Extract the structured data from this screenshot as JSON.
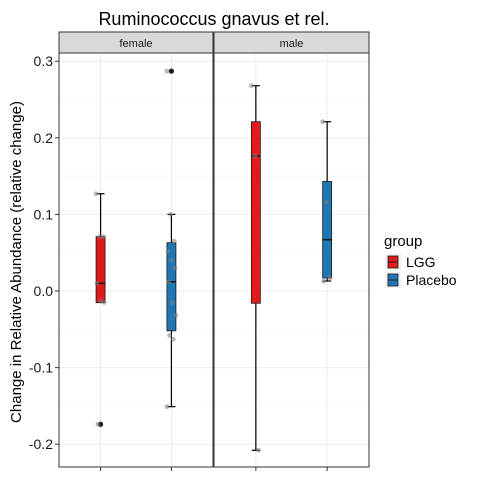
{
  "chart_data": {
    "type": "boxplot",
    "title": "Ruminococcus gnavus et rel.",
    "ylabel": "Change in Relative Abundance (relative change)",
    "xlabel": "",
    "ylim": [
      -0.23,
      0.33
    ],
    "y_ticks": [
      -0.2,
      -0.1,
      0.0,
      0.1,
      0.2,
      0.3
    ],
    "y_tick_labels": [
      "-0.2",
      "-0.1",
      "0.0",
      "0.1",
      "0.2",
      "0.3"
    ],
    "grid": true,
    "facets": [
      "female",
      "male"
    ],
    "legend": {
      "title": "group",
      "position": "right",
      "entries": [
        {
          "label": "LGG",
          "color": "#e31a1c"
        },
        {
          "label": "Placebo",
          "color": "#1f78b4"
        }
      ]
    },
    "boxes": [
      {
        "facet": "female",
        "group": "LGG",
        "min": -0.015,
        "q1": -0.015,
        "median": 0.01,
        "q3": 0.071,
        "max": 0.127,
        "outliers": [
          -0.174
        ],
        "points": [
          0.127,
          0.071,
          0.071,
          0.01,
          -0.013,
          -0.015,
          -0.174
        ]
      },
      {
        "facet": "female",
        "group": "Placebo",
        "min": -0.151,
        "q1": -0.052,
        "median": 0.012,
        "q3": 0.063,
        "max": 0.1,
        "outliers": [
          0.287
        ],
        "points": [
          0.287,
          0.1,
          0.065,
          0.052,
          0.04,
          0.03,
          0.012,
          -0.015,
          -0.032,
          -0.058,
          -0.063,
          -0.151
        ]
      },
      {
        "facet": "male",
        "group": "LGG",
        "min": -0.208,
        "q1": -0.016,
        "median": 0.176,
        "q3": 0.221,
        "max": 0.268,
        "outliers": [],
        "points": [
          0.268,
          0.176,
          -0.208
        ]
      },
      {
        "facet": "male",
        "group": "Placebo",
        "min": 0.013,
        "q1": 0.017,
        "median": 0.067,
        "q3": 0.143,
        "max": 0.221,
        "outliers": [],
        "points": [
          0.221,
          0.116,
          0.017,
          0.013
        ]
      }
    ]
  }
}
